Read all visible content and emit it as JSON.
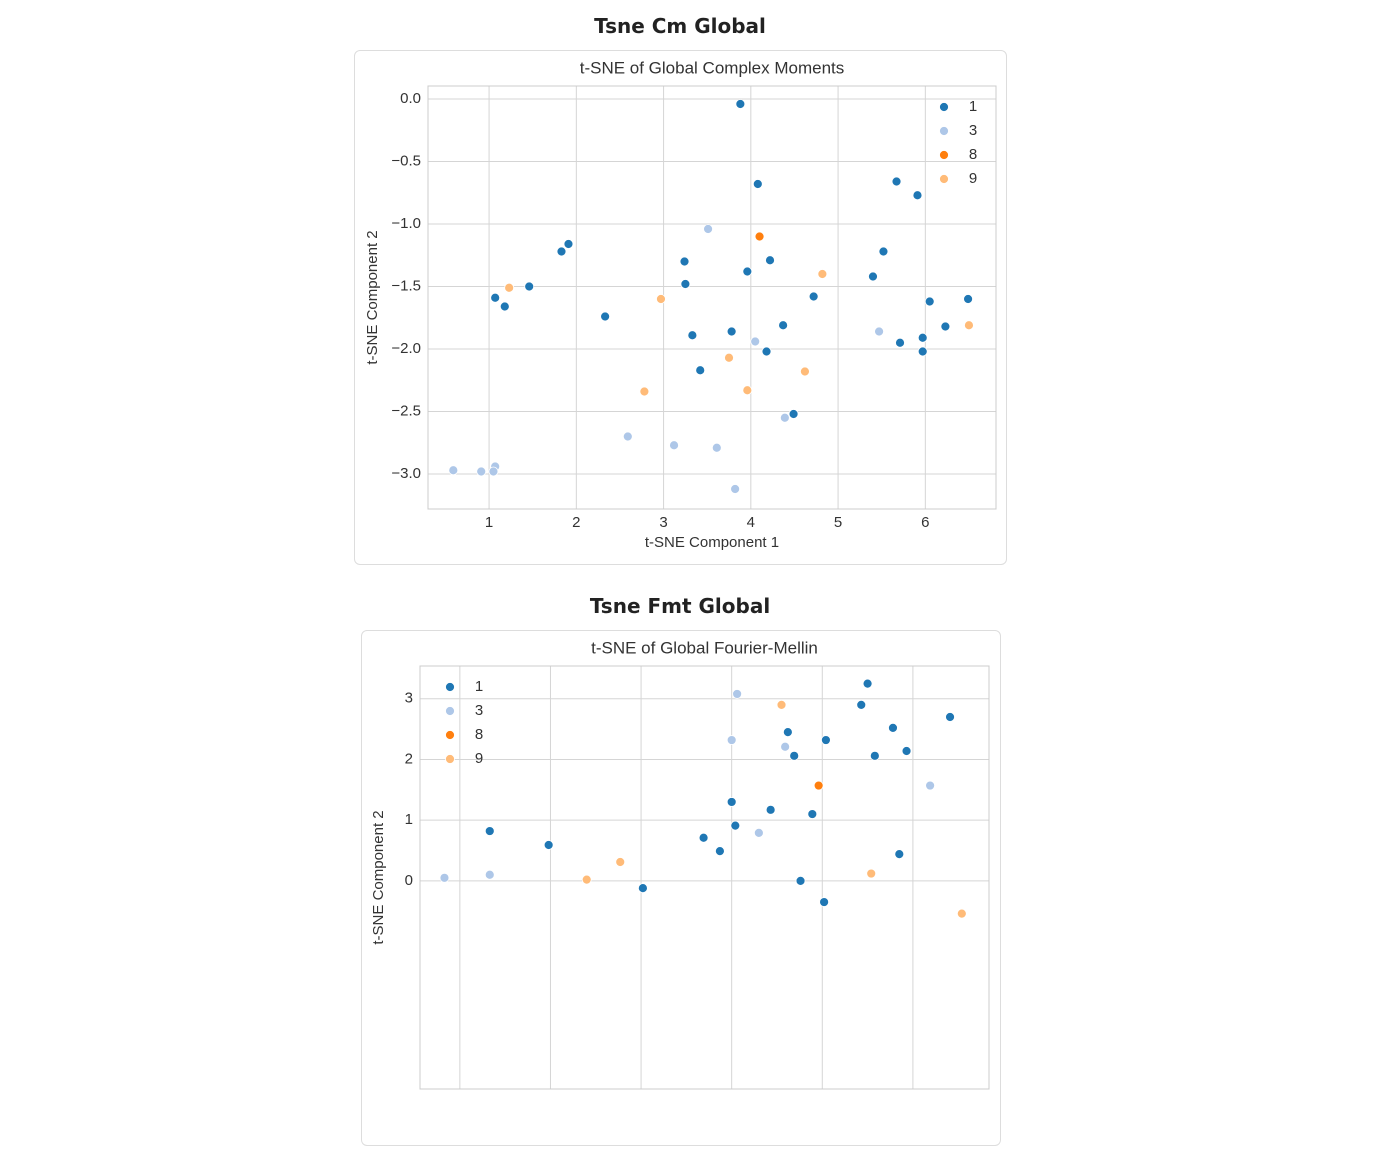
{
  "chart_data": [
    {
      "type": "scatter",
      "heading": "Tsne Cm Global",
      "title": "t-SNE of Global Complex Moments",
      "xlabel": "t-SNE Component 1",
      "ylabel": "t-SNE Component 2",
      "xlim": [
        0.3,
        6.81
      ],
      "ylim": [
        -3.28,
        0.104
      ],
      "xticks": [
        1,
        2,
        3,
        4,
        5,
        6
      ],
      "yticks": [
        {
          "value": 0,
          "label": "0.0"
        },
        {
          "value": -0.5,
          "label": "−0.5"
        },
        {
          "value": -1,
          "label": "−1.0"
        },
        {
          "value": -1.5,
          "label": "−1.5"
        },
        {
          "value": -2,
          "label": "−2.0"
        },
        {
          "value": -2.5,
          "label": "−2.5"
        },
        {
          "value": -3,
          "label": "−3.0"
        }
      ],
      "grid": true,
      "legend": "upper right",
      "series": [
        {
          "name": "1",
          "color": "#1f77b4",
          "x": [
            3.88,
            4.08,
            5.67,
            5.91,
            1.91,
            1.83,
            5.52,
            3.24,
            4.22,
            3.96,
            5.4,
            3.25,
            1.46,
            1.07,
            1.18,
            4.72,
            6.05,
            6.49,
            2.33,
            4.37,
            3.78,
            3.33,
            6.23,
            5.71,
            5.97,
            5.97,
            4.18,
            3.42,
            4.49
          ],
          "y": [
            -0.04,
            -0.68,
            -0.66,
            -0.77,
            -1.16,
            -1.22,
            -1.22,
            -1.3,
            -1.29,
            -1.38,
            -1.42,
            -1.48,
            -1.5,
            -1.59,
            -1.66,
            -1.58,
            -1.62,
            -1.6,
            -1.74,
            -1.81,
            -1.86,
            -1.89,
            -1.82,
            -1.95,
            -1.91,
            -2.02,
            -2.02,
            -2.17,
            -2.52
          ]
        },
        {
          "name": "3",
          "color": "#aec7e8",
          "x": [
            3.51,
            5.47,
            4.05,
            2.59,
            3.12,
            3.61,
            4.39,
            3.82,
            0.59,
            0.91,
            1.07,
            1.05
          ],
          "y": [
            -1.04,
            -1.86,
            -1.94,
            -2.7,
            -2.77,
            -2.79,
            -2.55,
            -3.12,
            -2.97,
            -2.98,
            -2.94,
            -2.98
          ]
        },
        {
          "name": "8",
          "color": "#ff7f0e",
          "x": [
            4.1
          ],
          "y": [
            -1.1
          ]
        },
        {
          "name": "9",
          "color": "#ffbb78",
          "x": [
            1.23,
            4.82,
            2.97,
            6.5,
            3.75,
            4.62,
            2.78,
            3.96
          ],
          "y": [
            -1.51,
            -1.4,
            -1.6,
            -1.81,
            -2.07,
            -2.18,
            -2.34,
            -2.33
          ]
        }
      ]
    },
    {
      "type": "scatter",
      "heading": "Tsne Fmt Global",
      "title": "t-SNE of Global Fourier-Mellin",
      "ylabel": "t-SNE Component 2",
      "xlim": [
        0.56,
        6.84
      ],
      "ylim": [
        -3.43,
        3.54
      ],
      "xticks": [
        1,
        2,
        3,
        4,
        5,
        6
      ],
      "yticks": [
        0,
        1,
        2,
        3
      ],
      "grid": true,
      "legend": "upper left",
      "series": [
        {
          "name": "1",
          "color": "#1f77b4",
          "x": [
            5.5,
            5.43,
            6.41,
            5.78,
            4.62,
            5.04,
            5.93,
            4.69,
            5.58,
            4.0,
            4.43,
            4.89,
            4.04,
            1.33,
            3.69,
            1.98,
            3.87,
            5.85,
            4.76,
            3.02,
            5.02
          ],
          "y": [
            3.25,
            2.9,
            2.7,
            2.52,
            2.45,
            2.32,
            2.14,
            2.06,
            2.06,
            1.3,
            1.17,
            1.1,
            0.91,
            0.82,
            0.71,
            0.59,
            0.49,
            0.44,
            0.0,
            -0.12,
            -0.35
          ]
        },
        {
          "name": "3",
          "color": "#aec7e8",
          "x": [
            4.06,
            4.0,
            4.59,
            6.19,
            4.3,
            0.83,
            1.33
          ],
          "y": [
            3.08,
            2.32,
            2.21,
            1.57,
            0.79,
            0.05,
            0.1
          ]
        },
        {
          "name": "8",
          "color": "#ff7f0e",
          "x": [
            4.96
          ],
          "y": [
            1.57
          ]
        },
        {
          "name": "9",
          "color": "#ffbb78",
          "x": [
            4.55,
            2.77,
            2.4,
            5.54,
            6.54
          ],
          "y": [
            2.9,
            0.31,
            0.02,
            0.12,
            -0.54
          ]
        }
      ]
    }
  ]
}
